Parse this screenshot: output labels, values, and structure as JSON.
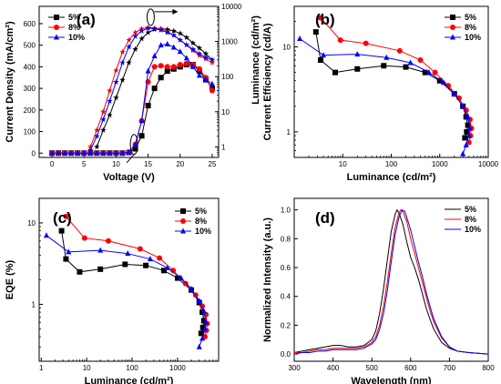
{
  "chart_data": [
    {
      "id": "a",
      "panel_label": "(a)",
      "type": "line",
      "xlabel": "Voltage (V)",
      "ylabel": "Current Density (mA/cm²)",
      "y2label": "Luminance (cd/m²)",
      "xlim": [
        -2,
        26
      ],
      "ylim": [
        -20,
        680
      ],
      "y2lim": [
        0.5,
        10000
      ],
      "y2scale": "log",
      "xticks": [
        "0",
        "5",
        "10",
        "15",
        "20",
        "25"
      ],
      "yticks": [
        "0",
        "100",
        "200",
        "300",
        "400",
        "500",
        "600"
      ],
      "y2ticks": [
        "1",
        "10",
        "100",
        "1000",
        "10000"
      ],
      "legend": "top-left",
      "series": [
        {
          "name": "5%",
          "color": "#000000",
          "marker": "square",
          "x": [
            0,
            1,
            2,
            3,
            4,
            5,
            6,
            7,
            8,
            9,
            10,
            11,
            12,
            13,
            14,
            15,
            16,
            17,
            18,
            19,
            20,
            21,
            22,
            23,
            24,
            25
          ],
          "y": [
            0,
            0,
            0,
            0,
            0,
            0,
            0,
            0,
            0,
            0,
            0,
            0,
            3,
            20,
            80,
            220,
            300,
            350,
            380,
            390,
            400,
            410,
            410,
            380,
            340,
            300
          ]
        },
        {
          "name": "8%",
          "color": "#ff0000",
          "marker": "circle",
          "x": [
            0,
            1,
            2,
            3,
            4,
            5,
            6,
            7,
            8,
            9,
            10,
            11,
            12,
            13,
            14,
            15,
            16,
            17,
            18,
            19,
            20,
            21,
            22,
            23,
            24,
            25
          ],
          "y": [
            0,
            0,
            0,
            0,
            0,
            0,
            0,
            0,
            0,
            0,
            0,
            0,
            5,
            40,
            150,
            330,
            400,
            405,
            400,
            400,
            410,
            415,
            410,
            390,
            350,
            290
          ]
        },
        {
          "name": "10%",
          "color": "#0000ff",
          "marker": "triangle",
          "x": [
            0,
            1,
            2,
            3,
            4,
            5,
            6,
            7,
            8,
            9,
            10,
            11,
            12,
            13,
            14,
            15,
            16,
            17,
            18,
            19,
            20,
            21,
            22,
            23,
            24,
            25
          ],
          "y": [
            0,
            0,
            0,
            0,
            0,
            0,
            0,
            0,
            0,
            0,
            0,
            0,
            5,
            40,
            150,
            380,
            450,
            500,
            505,
            490,
            470,
            440,
            400,
            360,
            340,
            320
          ]
        },
        {
          "name": "",
          "color": "#000000",
          "marker": "star",
          "axis": "y2",
          "x": [
            7,
            8,
            9,
            10,
            11,
            12,
            13,
            14,
            15,
            16,
            17,
            18,
            19,
            20,
            21,
            22,
            23,
            24,
            25
          ],
          "y": [
            1,
            3,
            8,
            25,
            80,
            250,
            600,
            1200,
            1800,
            2200,
            2300,
            2200,
            2000,
            1700,
            1300,
            900,
            650,
            450,
            300
          ]
        },
        {
          "name": "",
          "color": "#ff0000",
          "marker": "star",
          "axis": "y2",
          "x": [
            6,
            7,
            8,
            9,
            10,
            11,
            12,
            13,
            14,
            15,
            16,
            17,
            18,
            19,
            20,
            21,
            22,
            23,
            24,
            25
          ],
          "y": [
            1,
            3,
            10,
            40,
            150,
            500,
            1100,
            1800,
            2300,
            2500,
            2400,
            2200,
            1900,
            1500,
            1100,
            800,
            550,
            400,
            320,
            250
          ]
        },
        {
          "name": "",
          "color": "#0000ff",
          "marker": "star",
          "axis": "y2",
          "x": [
            6,
            7,
            8,
            9,
            10,
            11,
            12,
            13,
            14,
            15,
            16,
            17,
            18,
            19,
            20,
            21,
            22,
            23,
            24,
            25
          ],
          "y": [
            0.8,
            2,
            6,
            20,
            70,
            250,
            700,
            1400,
            2000,
            2400,
            2300,
            2100,
            1800,
            1500,
            1100,
            800,
            600,
            450,
            350,
            300
          ]
        }
      ]
    },
    {
      "id": "b",
      "panel_label": "(b)",
      "type": "line",
      "xlabel": "Luminance (cd/m²)",
      "ylabel": "Current Efficiency (cd/A)",
      "xscale": "log",
      "yscale": "log",
      "xlim": [
        1,
        10000
      ],
      "ylim": [
        0.5,
        30
      ],
      "xticks": [
        "10",
        "100",
        "1000",
        "10000"
      ],
      "yticks": [
        "1",
        "10"
      ],
      "legend": "top-right",
      "series": [
        {
          "name": "5%",
          "color": "#000000",
          "marker": "square",
          "x": [
            2.8,
            3.5,
            7,
            20,
            70,
            200,
            500,
            1000,
            2000,
            3000,
            3500,
            3800,
            3600,
            3300
          ],
          "y": [
            15,
            7,
            5,
            5.5,
            6,
            5.8,
            5,
            4,
            2.8,
            2,
            1.5,
            1.2,
            1,
            0.85
          ]
        },
        {
          "name": "8%",
          "color": "#ff0000",
          "marker": "circle",
          "x": [
            3.5,
            9,
            30,
            150,
            400,
            800,
            1500,
            2500,
            3500,
            4200,
            4500,
            4300,
            4000
          ],
          "y": [
            22,
            12,
            11,
            9,
            7,
            5,
            3.5,
            2.5,
            1.8,
            1.4,
            1.1,
            0.9,
            0.75
          ]
        },
        {
          "name": "10%",
          "color": "#0000ff",
          "marker": "triangle",
          "x": [
            1.3,
            4,
            20,
            80,
            250,
            600,
            1200,
            2000,
            3000,
            3800,
            4200,
            4000,
            3500,
            3000
          ],
          "y": [
            12.5,
            8,
            8.2,
            7.5,
            6.5,
            5,
            3.8,
            2.8,
            2,
            1.5,
            1.1,
            0.9,
            0.7,
            0.55
          ]
        }
      ]
    },
    {
      "id": "c",
      "panel_label": "(c)",
      "type": "line",
      "xlabel": "Luminance (cd/m²)",
      "ylabel": "EQE (%)",
      "xscale": "log",
      "yscale": "log",
      "xlim": [
        0.9,
        8000
      ],
      "ylim": [
        0.2,
        20
      ],
      "xticks": [
        "1",
        "10",
        "100",
        "1000"
      ],
      "yticks": [
        "1",
        "10"
      ],
      "legend": "top-right",
      "series": [
        {
          "name": "5%",
          "color": "#000000",
          "marker": "square",
          "x": [
            2.8,
            3.5,
            7,
            20,
            70,
            200,
            500,
            1000,
            2000,
            3000,
            3500,
            3800,
            3600,
            3300
          ],
          "y": [
            8,
            3.6,
            2.5,
            2.7,
            3.1,
            3,
            2.6,
            2.1,
            1.5,
            1.05,
            0.8,
            0.63,
            0.52,
            0.44
          ]
        },
        {
          "name": "8%",
          "color": "#ff0000",
          "marker": "circle",
          "x": [
            3.5,
            9,
            30,
            150,
            400,
            800,
            1500,
            2500,
            3500,
            4200,
            4500,
            4300,
            4000
          ],
          "y": [
            12,
            6.5,
            6,
            4.8,
            3.7,
            2.6,
            1.8,
            1.3,
            0.95,
            0.75,
            0.58,
            0.48,
            0.4
          ]
        },
        {
          "name": "10%",
          "color": "#0000ff",
          "marker": "triangle",
          "x": [
            1.3,
            4,
            20,
            80,
            250,
            600,
            1200,
            2000,
            3000,
            3800,
            4200,
            4000,
            3500,
            3000
          ],
          "y": [
            7,
            4.4,
            4.6,
            4.2,
            3.6,
            2.8,
            2.1,
            1.55,
            1.1,
            0.82,
            0.6,
            0.5,
            0.38,
            0.3
          ]
        }
      ]
    },
    {
      "id": "d",
      "panel_label": "(d)",
      "type": "line",
      "xlabel": "Wavelength (nm)",
      "ylabel": "Normalized Intensity (a.u.)",
      "xlim": [
        300,
        800
      ],
      "ylim": [
        -0.05,
        1.08
      ],
      "xticks": [
        "300",
        "400",
        "500",
        "600",
        "700",
        "800"
      ],
      "yticks": [
        "0.0",
        "0.2",
        "0.4",
        "0.6",
        "0.8",
        "1.0"
      ],
      "legend": "top-right",
      "series": [
        {
          "name": "5%",
          "color": "#000000",
          "marker": "none",
          "x": [
            300,
            320,
            340,
            360,
            380,
            400,
            420,
            440,
            460,
            480,
            500,
            510,
            520,
            530,
            540,
            550,
            560,
            565,
            570,
            580,
            590,
            600,
            610,
            620,
            630,
            640,
            650,
            660,
            680,
            700,
            720,
            750,
            800
          ],
          "y": [
            0.01,
            0.02,
            0.03,
            0.04,
            0.05,
            0.06,
            0.06,
            0.05,
            0.05,
            0.06,
            0.1,
            0.16,
            0.28,
            0.45,
            0.65,
            0.85,
            0.97,
            1.0,
            0.98,
            0.9,
            0.78,
            0.67,
            0.6,
            0.52,
            0.42,
            0.32,
            0.24,
            0.17,
            0.08,
            0.04,
            0.02,
            0.01,
            0.0
          ]
        },
        {
          "name": "8%",
          "color": "#ff0000",
          "marker": "none",
          "x": [
            300,
            320,
            340,
            360,
            380,
            400,
            420,
            440,
            460,
            480,
            500,
            510,
            520,
            530,
            540,
            550,
            560,
            570,
            575,
            580,
            590,
            600,
            610,
            620,
            630,
            640,
            650,
            660,
            680,
            700,
            720,
            750,
            800
          ],
          "y": [
            0.01,
            0.01,
            0.02,
            0.03,
            0.03,
            0.04,
            0.04,
            0.04,
            0.04,
            0.05,
            0.08,
            0.12,
            0.2,
            0.33,
            0.5,
            0.7,
            0.88,
            0.98,
            1.0,
            0.99,
            0.92,
            0.8,
            0.7,
            0.6,
            0.5,
            0.4,
            0.3,
            0.22,
            0.11,
            0.05,
            0.02,
            0.01,
            0.0
          ]
        },
        {
          "name": "10%",
          "color": "#0000ff",
          "marker": "none",
          "x": [
            300,
            320,
            340,
            360,
            380,
            400,
            420,
            440,
            460,
            480,
            500,
            510,
            520,
            530,
            540,
            550,
            560,
            570,
            578,
            585,
            590,
            600,
            610,
            620,
            630,
            640,
            650,
            660,
            680,
            700,
            720,
            750,
            800
          ],
          "y": [
            0.0,
            0.01,
            0.01,
            0.02,
            0.02,
            0.03,
            0.03,
            0.03,
            0.03,
            0.04,
            0.07,
            0.1,
            0.17,
            0.28,
            0.44,
            0.64,
            0.83,
            0.95,
            1.0,
            0.99,
            0.95,
            0.86,
            0.75,
            0.64,
            0.54,
            0.43,
            0.33,
            0.24,
            0.12,
            0.05,
            0.02,
            0.01,
            0.0
          ]
        }
      ]
    }
  ]
}
